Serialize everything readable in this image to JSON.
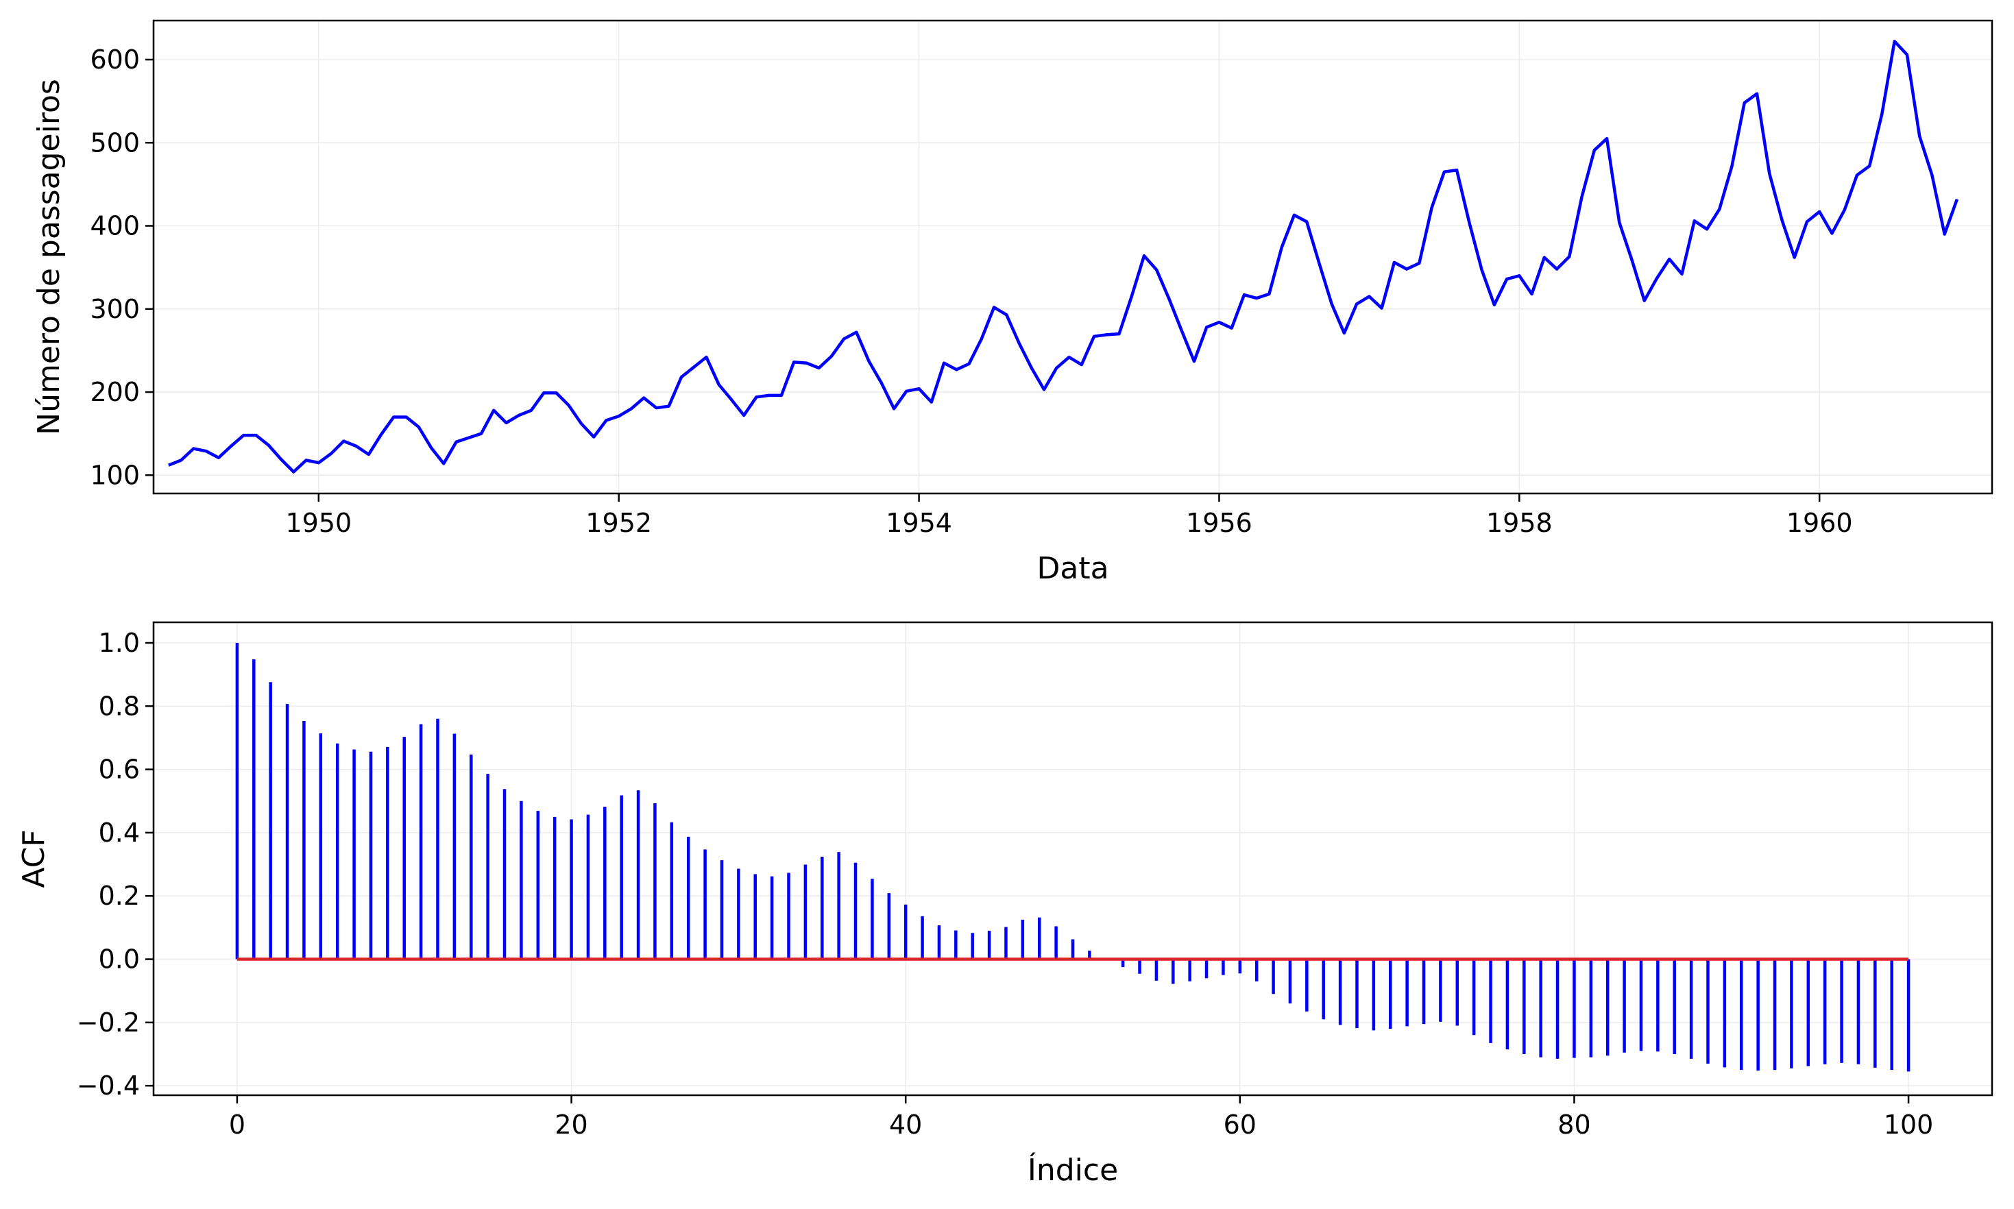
{
  "colors": {
    "line": "#0000ff",
    "stems": "#0000ff",
    "baseline": "#d62728",
    "grid": "#ebebeb",
    "frame": "#000000"
  },
  "chart_data": [
    {
      "type": "line",
      "title": "",
      "xlabel": "Data",
      "ylabel": "Número de passageiros",
      "x_start": "1949-01",
      "x_step": "1 month",
      "xlim": [
        1948.9,
        1961.15
      ],
      "ylim": [
        78,
        647
      ],
      "xticks": [
        1950,
        1952,
        1954,
        1956,
        1958,
        1960
      ],
      "yticks": [
        100,
        200,
        300,
        400,
        500,
        600
      ],
      "grid": true,
      "series": [
        {
          "values": [
            112,
            118,
            132,
            129,
            121,
            135,
            148,
            148,
            136,
            119,
            104,
            118,
            115,
            126,
            141,
            135,
            125,
            149,
            170,
            170,
            158,
            133,
            114,
            140,
            145,
            150,
            178,
            163,
            172,
            178,
            199,
            199,
            184,
            162,
            146,
            166,
            171,
            180,
            193,
            181,
            183,
            218,
            230,
            242,
            209,
            191,
            172,
            194,
            196,
            196,
            236,
            235,
            229,
            243,
            264,
            272,
            237,
            211,
            180,
            201,
            204,
            188,
            235,
            227,
            234,
            264,
            302,
            293,
            259,
            229,
            203,
            229,
            242,
            233,
            267,
            269,
            270,
            315,
            364,
            347,
            312,
            274,
            237,
            278,
            284,
            277,
            317,
            313,
            318,
            374,
            413,
            405,
            355,
            306,
            271,
            306,
            315,
            301,
            356,
            348,
            355,
            422,
            465,
            467,
            404,
            347,
            305,
            336,
            340,
            318,
            362,
            348,
            363,
            435,
            491,
            505,
            404,
            359,
            310,
            337,
            360,
            342,
            406,
            396,
            420,
            472,
            548,
            559,
            463,
            407,
            362,
            405,
            417,
            391,
            419,
            461,
            472,
            535,
            622,
            606,
            508,
            461,
            390,
            432
          ]
        }
      ]
    },
    {
      "type": "stem",
      "title": "",
      "xlabel": "Índice",
      "ylabel": "ACF",
      "xlim": [
        -5,
        105
      ],
      "ylim": [
        -0.43,
        1.065
      ],
      "xticks": [
        0,
        20,
        40,
        60,
        80,
        100
      ],
      "yticks": [
        1.0,
        0.8,
        0.6,
        0.4,
        0.2,
        0.0,
        -0.2,
        -0.4
      ],
      "ytick_labels": [
        "1.0",
        "0.8",
        "0.6",
        "0.4",
        "0.2",
        "0.0",
        "−0.2",
        "−0.4"
      ],
      "grid": true,
      "baseline": 0,
      "x": [
        0,
        1,
        2,
        3,
        4,
        5,
        6,
        7,
        8,
        9,
        10,
        11,
        12,
        13,
        14,
        15,
        16,
        17,
        18,
        19,
        20,
        21,
        22,
        23,
        24,
        25,
        26,
        27,
        28,
        29,
        30,
        31,
        32,
        33,
        34,
        35,
        36,
        37,
        38,
        39,
        40,
        41,
        42,
        43,
        44,
        45,
        46,
        47,
        48,
        49,
        50,
        51,
        52,
        53,
        54,
        55,
        56,
        57,
        58,
        59,
        60,
        61,
        62,
        63,
        64,
        65,
        66,
        67,
        68,
        69,
        70,
        71,
        72,
        73,
        74,
        75,
        76,
        77,
        78,
        79,
        80,
        81,
        82,
        83,
        84,
        85,
        86,
        87,
        88,
        89,
        90,
        91,
        92,
        93,
        94,
        95,
        96,
        97,
        98,
        99,
        100
      ],
      "values": [
        1.0,
        0.948,
        0.876,
        0.807,
        0.753,
        0.714,
        0.682,
        0.663,
        0.656,
        0.671,
        0.703,
        0.743,
        0.76,
        0.713,
        0.647,
        0.586,
        0.538,
        0.5,
        0.469,
        0.45,
        0.442,
        0.457,
        0.482,
        0.518,
        0.534,
        0.493,
        0.433,
        0.387,
        0.347,
        0.313,
        0.286,
        0.269,
        0.262,
        0.273,
        0.299,
        0.324,
        0.339,
        0.305,
        0.254,
        0.209,
        0.173,
        0.136,
        0.107,
        0.091,
        0.083,
        0.09,
        0.102,
        0.125,
        0.132,
        0.104,
        0.063,
        0.027,
        0.0,
        -0.025,
        -0.046,
        -0.068,
        -0.078,
        -0.07,
        -0.06,
        -0.05,
        -0.045,
        -0.07,
        -0.11,
        -0.14,
        -0.165,
        -0.19,
        -0.208,
        -0.218,
        -0.225,
        -0.22,
        -0.212,
        -0.205,
        -0.198,
        -0.21,
        -0.24,
        -0.265,
        -0.285,
        -0.3,
        -0.31,
        -0.315,
        -0.312,
        -0.31,
        -0.305,
        -0.295,
        -0.29,
        -0.292,
        -0.3,
        -0.315,
        -0.33,
        -0.342,
        -0.35,
        -0.352,
        -0.35,
        -0.345,
        -0.338,
        -0.332,
        -0.328,
        -0.332,
        -0.343,
        -0.35,
        -0.355
      ]
    }
  ]
}
